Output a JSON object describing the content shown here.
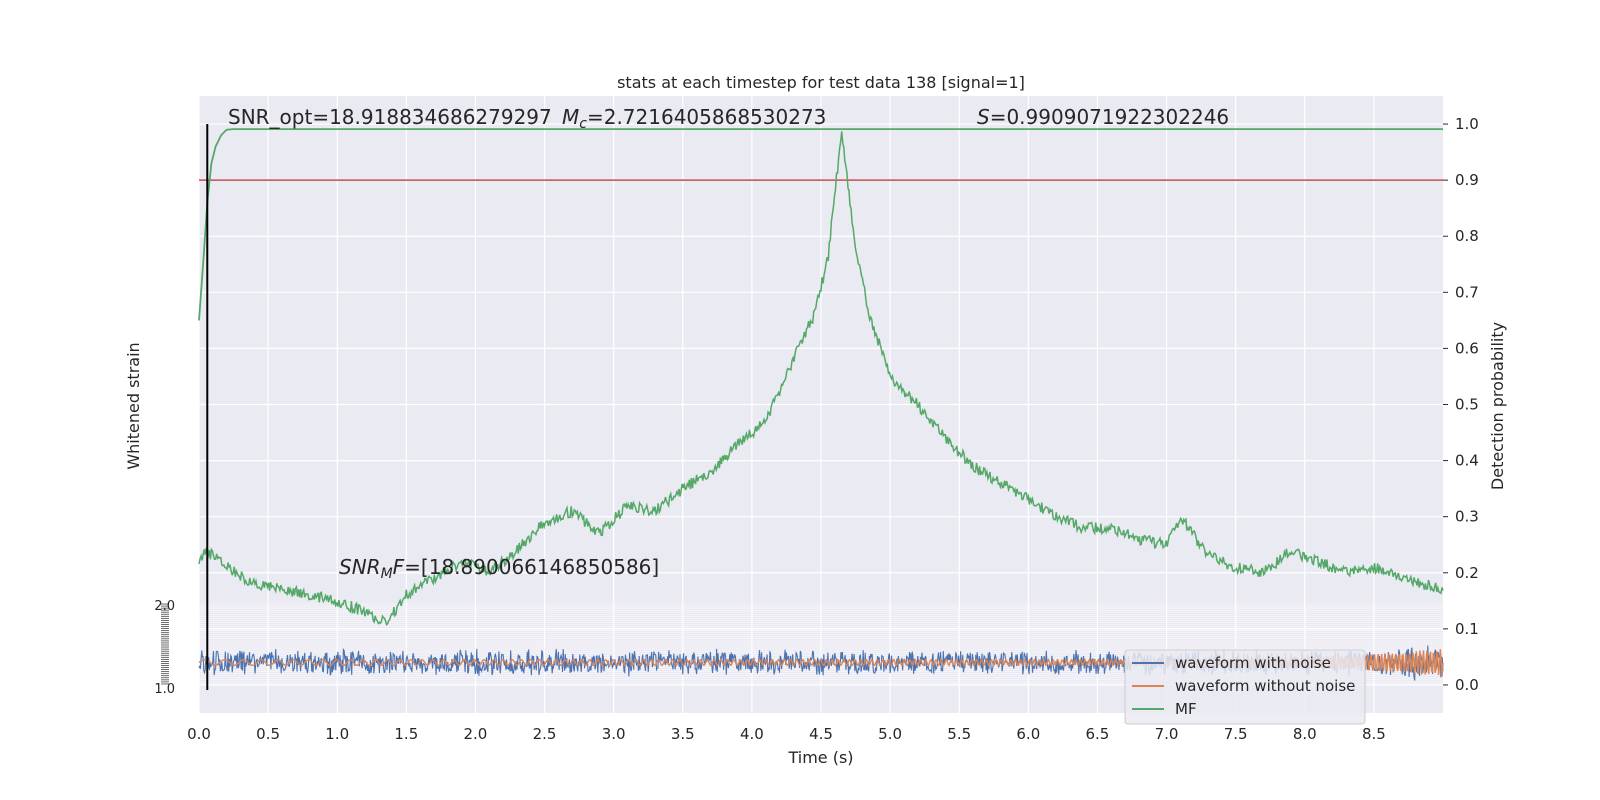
{
  "chart_data": {
    "type": "line",
    "title": "stats at each timestep for test data 138 [signal=1]",
    "xlabel": "Time (s)",
    "ylabel_left": "Whitened strain",
    "ylabel_right": "Detection probability",
    "xlim": [
      0.0,
      9.0
    ],
    "ylim_right": [
      -0.05,
      1.05
    ],
    "x_ticks": [
      "0.0",
      "0.5",
      "1.0",
      "1.5",
      "2.0",
      "2.5",
      "3.0",
      "3.5",
      "4.0",
      "4.5",
      "5.0",
      "5.5",
      "6.0",
      "6.5",
      "7.0",
      "7.5",
      "8.0",
      "8.5"
    ],
    "y_ticks_right": [
      "0.0",
      "0.1",
      "0.2",
      "0.3",
      "0.4",
      "0.5",
      "0.6",
      "0.7",
      "0.8",
      "0.9",
      "1.0"
    ],
    "y_ticks_left_visible": [
      "2.0",
      "1.0"
    ],
    "grid": true,
    "legend_position": "bottom-right",
    "annotations": {
      "snr_opt": "SNR_opt=18.918834686279297",
      "mc_symbol": "M",
      "mc_sub": "c",
      "mc_value": "=2.7216405868530273",
      "s_symbol": "S",
      "s_value": "=0.9909071922302246",
      "snr_mf_symbol": "SNR",
      "snr_mf_sub": "M",
      "snr_mf_f": "F",
      "snr_mf_value": "=[18.890066146850586]"
    },
    "threshold": 0.9,
    "event_time": 0.06,
    "series": [
      {
        "name": "waveform with noise",
        "color": "#4c72b0",
        "amplitude_band": [
          0.015,
          0.065
        ]
      },
      {
        "name": "waveform without noise",
        "color": "#dd8452",
        "amplitude_band": [
          0.035,
          0.045
        ]
      },
      {
        "name": "MF",
        "color": "#55a868",
        "x": [
          0.0,
          0.05,
          0.1,
          0.2,
          0.4,
          0.6,
          0.8,
          1.0,
          1.2,
          1.35,
          1.5,
          1.7,
          1.9,
          2.1,
          2.3,
          2.5,
          2.7,
          2.9,
          3.1,
          3.3,
          3.5,
          3.7,
          3.9,
          4.1,
          4.3,
          4.45,
          4.55,
          4.65,
          4.75,
          4.85,
          5.0,
          5.2,
          5.4,
          5.6,
          5.8,
          6.0,
          6.2,
          6.4,
          6.6,
          6.8,
          7.0,
          7.1,
          7.3,
          7.5,
          7.7,
          7.9,
          8.1,
          8.3,
          8.5,
          8.7,
          9.0
        ],
        "values": [
          0.22,
          0.24,
          0.23,
          0.21,
          0.18,
          0.17,
          0.16,
          0.15,
          0.13,
          0.11,
          0.16,
          0.19,
          0.22,
          0.2,
          0.24,
          0.29,
          0.31,
          0.27,
          0.32,
          0.31,
          0.35,
          0.38,
          0.43,
          0.47,
          0.58,
          0.66,
          0.76,
          0.99,
          0.78,
          0.66,
          0.55,
          0.5,
          0.44,
          0.39,
          0.36,
          0.33,
          0.3,
          0.28,
          0.28,
          0.26,
          0.25,
          0.3,
          0.23,
          0.21,
          0.2,
          0.24,
          0.22,
          0.2,
          0.21,
          0.19,
          0.17
        ]
      },
      {
        "name": "detection probability",
        "color": "#55a868",
        "x": [
          0.0,
          0.03,
          0.06,
          0.09,
          0.12,
          0.16,
          0.2,
          0.25,
          0.3,
          0.4,
          0.6,
          9.0
        ],
        "values": [
          0.65,
          0.75,
          0.86,
          0.93,
          0.96,
          0.98,
          0.99,
          0.991,
          0.991,
          0.991,
          0.991,
          0.991
        ]
      }
    ]
  },
  "legend": {
    "item_noise": "waveform with noise",
    "item_clean": "waveform without noise",
    "item_mf": "MF"
  },
  "colors": {
    "plot_bg": "#eaeaf2",
    "grid": "#ffffff",
    "noise": "#4c72b0",
    "clean": "#dd8452",
    "mf": "#55a868",
    "threshold": "#c44e52",
    "event_line": "#000000"
  }
}
